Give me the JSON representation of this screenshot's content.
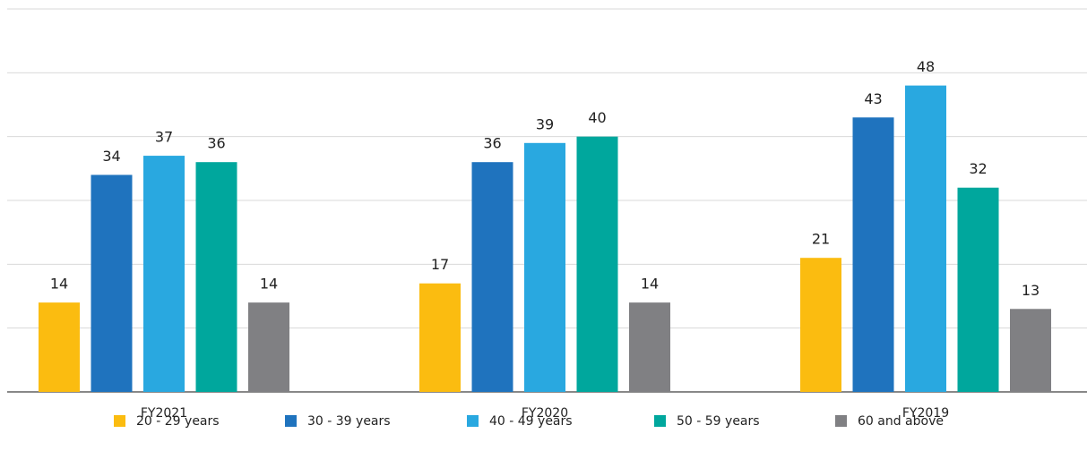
{
  "chart_data": {
    "type": "bar",
    "categories": [
      "FY2021",
      "FY2020",
      "FY2019"
    ],
    "series": [
      {
        "name": "20 - 29 years",
        "color": "#fbbc10",
        "values": [
          14,
          17,
          21
        ]
      },
      {
        "name": "30 - 39 years",
        "color": "#1f73be",
        "values": [
          34,
          36,
          43
        ]
      },
      {
        "name": "40 - 49 years",
        "color": "#29a8e0",
        "values": [
          37,
          39,
          48
        ]
      },
      {
        "name": "50 - 59 years",
        "color": "#00a79d",
        "values": [
          36,
          40,
          32
        ]
      },
      {
        "name": "60 and above",
        "color": "#808083",
        "values": [
          14,
          14,
          13
        ]
      }
    ],
    "ylim": [
      0,
      60
    ],
    "yticks": [
      0,
      10,
      20,
      30,
      40,
      50,
      60
    ],
    "grid": true,
    "legend": "bottom"
  }
}
